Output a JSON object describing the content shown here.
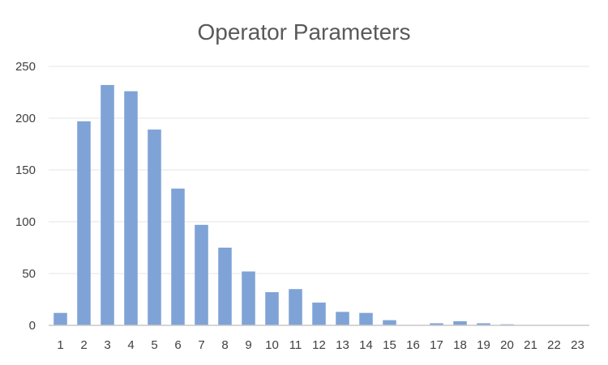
{
  "chart_data": {
    "type": "bar",
    "title": "Operator Parameters",
    "xlabel": "",
    "ylabel": "",
    "categories": [
      "1",
      "2",
      "3",
      "4",
      "5",
      "6",
      "7",
      "8",
      "9",
      "10",
      "11",
      "12",
      "13",
      "14",
      "15",
      "16",
      "17",
      "18",
      "19",
      "20",
      "21",
      "22",
      "23"
    ],
    "values": [
      12,
      197,
      232,
      226,
      189,
      132,
      97,
      75,
      52,
      32,
      35,
      22,
      13,
      12,
      5,
      0,
      2,
      4,
      2,
      1,
      0,
      0,
      0
    ],
    "ylim": [
      0,
      250
    ],
    "yticks": [
      0,
      50,
      100,
      150,
      200,
      250
    ],
    "grid": true,
    "legend": "none",
    "bar_color": "#7fa3d6"
  }
}
